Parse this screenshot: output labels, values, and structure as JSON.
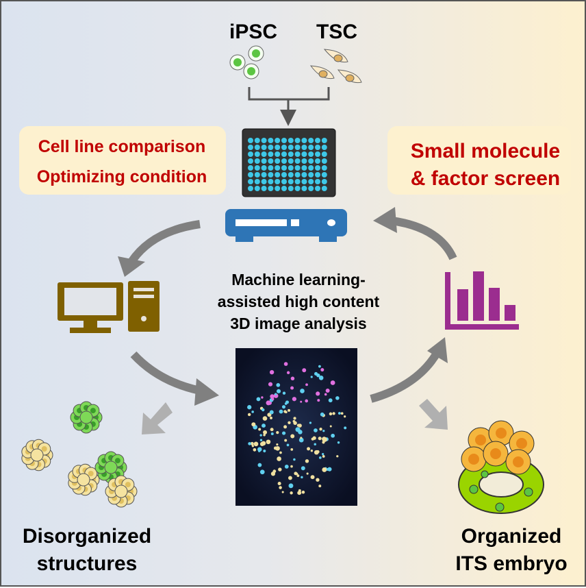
{
  "labels": {
    "ipsc": "iPSC",
    "tsc": "TSC",
    "left_box": [
      "Cell line comparison",
      "Optimizing condition"
    ],
    "right_box": [
      "Small molecule",
      "& factor screen"
    ],
    "center": [
      "Machine learning-",
      "assisted high content",
      "3D image analysis"
    ],
    "bottom_left": [
      "Disorganized",
      "structures"
    ],
    "bottom_right": [
      "Organized",
      "ITS embryo"
    ]
  },
  "colors": {
    "red_text": "#c00000",
    "box_fill": "#fdf1cf",
    "well": "#3ec8e8",
    "scanner": "#2e75b6",
    "computer": "#7f6000",
    "bar_chart": "#9b2d8f",
    "arrow": "#7f7f7f"
  },
  "icons": [
    "ipsc-cells-icon",
    "tsc-cells-icon",
    "well-plate-icon",
    "imaging-scanner-icon",
    "computer-icon",
    "bar-chart-icon",
    "ai-brain-image",
    "disorganized-spheroids-icon",
    "organized-embryo-icon"
  ]
}
